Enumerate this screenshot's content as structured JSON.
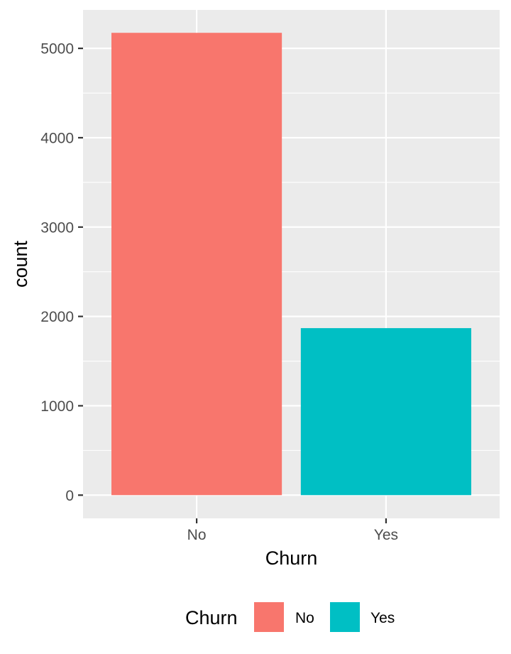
{
  "chart_data": {
    "type": "bar",
    "categories": [
      "No",
      "Yes"
    ],
    "values": [
      5174,
      1869
    ],
    "xlabel": "Churn",
    "ylabel": "count",
    "ylim": [
      -260,
      5430
    ],
    "yticks": [
      0,
      1000,
      2000,
      3000,
      4000,
      5000
    ],
    "ytick_labels": [
      "0",
      "1000",
      "2000",
      "3000",
      "4000",
      "5000"
    ],
    "grid": true,
    "legend": {
      "title": "Churn",
      "position": "bottom",
      "entries": [
        "No",
        "Yes"
      ]
    },
    "colors": {
      "No": "#F8766D",
      "Yes": "#00BFC4",
      "panel": "#EBEBEB",
      "grid": "#FFFFFF",
      "tick": "#333333"
    }
  }
}
